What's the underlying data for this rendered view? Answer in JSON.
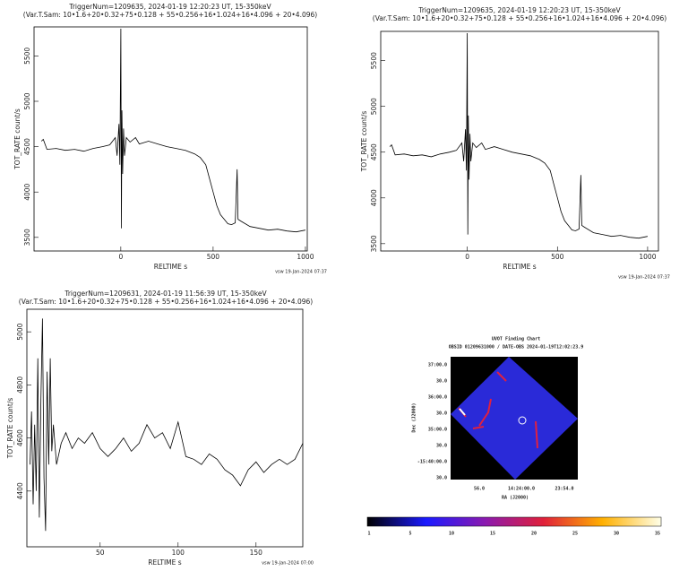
{
  "chart_data": [
    {
      "type": "line",
      "title": "TriggerNum=1209635, 2024-01-19 12:20:23 UT, 15-350keV",
      "subtitle": "(Var.T.Sam: 10•1.6+20•0.32+75•0.128 + 55•0.256+16•1.024+16•4.096 + 20•4.096)",
      "xlabel": "RELTIME s",
      "ylabel": "TOT_RATE count/s",
      "footer": "vsw 19-Jan-2024 07:37",
      "color": "#000000",
      "xlim": [
        -470,
        1010
      ],
      "xticks": [
        0,
        500,
        1000
      ],
      "ylim": [
        3350,
        5820
      ],
      "yticks": [
        3500,
        4000,
        4500,
        5000,
        5500
      ],
      "x": [
        -430,
        -420,
        -400,
        -350,
        -300,
        -250,
        -200,
        -150,
        -100,
        -60,
        -30,
        -20,
        -10,
        -5,
        0,
        3,
        6,
        10,
        15,
        20,
        30,
        50,
        80,
        100,
        150,
        200,
        250,
        300,
        350,
        400,
        430,
        460,
        480,
        500,
        520,
        540,
        560,
        580,
        600,
        620,
        630,
        635,
        650,
        700,
        750,
        800,
        850,
        900,
        950,
        1000
      ],
      "values": [
        4560,
        4580,
        4470,
        4480,
        4460,
        4470,
        4450,
        4480,
        4500,
        4520,
        4600,
        4400,
        4750,
        4300,
        5800,
        3600,
        4900,
        4200,
        4700,
        4400,
        4600,
        4550,
        4600,
        4530,
        4560,
        4530,
        4500,
        4480,
        4460,
        4420,
        4380,
        4300,
        4150,
        4000,
        3850,
        3750,
        3700,
        3650,
        3640,
        3660,
        4250,
        3700,
        3680,
        3620,
        3600,
        3580,
        3590,
        3570,
        3560,
        3580
      ]
    },
    {
      "type": "line",
      "title": "TriggerNum=1209635, 2024-01-19 12:20:23 UT, 15-350keV",
      "subtitle": "(Var.T.Sam: 10•1.6+20•0.32+75•0.128 + 55•0.256+16•1.024+16•4.096 + 20•4.096)",
      "xlabel": "RELTIME s",
      "ylabel": "TOT_RATE count/s",
      "footer": "vsw 19-Jan-2024 07:37",
      "color": "#000000",
      "xlim": [
        -480,
        1060
      ],
      "xticks": [
        0,
        500,
        1000
      ],
      "ylim": [
        3420,
        5820
      ],
      "yticks": [
        3500,
        4000,
        4500,
        5000,
        5500
      ],
      "x": [
        -430,
        -420,
        -400,
        -350,
        -300,
        -250,
        -200,
        -150,
        -100,
        -60,
        -30,
        -20,
        -10,
        -5,
        0,
        3,
        6,
        10,
        15,
        20,
        30,
        50,
        80,
        100,
        150,
        200,
        250,
        300,
        350,
        400,
        430,
        460,
        480,
        500,
        520,
        540,
        560,
        580,
        600,
        620,
        630,
        635,
        650,
        700,
        750,
        800,
        850,
        900,
        950,
        1000
      ],
      "values": [
        4560,
        4580,
        4470,
        4480,
        4460,
        4470,
        4450,
        4480,
        4500,
        4520,
        4600,
        4400,
        4750,
        4300,
        5800,
        3600,
        4900,
        4200,
        4700,
        4400,
        4600,
        4550,
        4600,
        4530,
        4560,
        4530,
        4500,
        4480,
        4460,
        4420,
        4380,
        4300,
        4150,
        4000,
        3850,
        3750,
        3700,
        3650,
        3640,
        3660,
        4250,
        3700,
        3680,
        3620,
        3600,
        3580,
        3590,
        3570,
        3560,
        3580
      ]
    },
    {
      "type": "line",
      "title": "TriggerNum=1209631, 2024-01-19 11:56:39 UT, 15-350keV",
      "subtitle": "(Var.T.Sam: 10•1.6+20•0.32+75•0.128 + 55•0.256+16•1.024+16•4.096 + 20•4.096)",
      "xlabel": "RELTIME s",
      "ylabel": "TOT_RATE count/s",
      "footer": "vsw 19-Jan-2024 07:00",
      "color": "#000000",
      "xlim": [
        3,
        180
      ],
      "xticks": [
        50,
        100,
        150
      ],
      "ylim": [
        4190,
        5085
      ],
      "yticks": [
        4400,
        4600,
        4800,
        5000
      ],
      "x": [
        5,
        6,
        7,
        8,
        9,
        10,
        11,
        12,
        13,
        14,
        15,
        16,
        17,
        18,
        19,
        20,
        22,
        25,
        28,
        32,
        36,
        40,
        45,
        50,
        55,
        60,
        65,
        70,
        75,
        80,
        85,
        90,
        95,
        100,
        105,
        110,
        115,
        120,
        125,
        130,
        135,
        140,
        145,
        150,
        155,
        160,
        165,
        170,
        175,
        180
      ],
      "values": [
        4500,
        4700,
        4350,
        4650,
        4400,
        4900,
        4300,
        4750,
        5050,
        4450,
        4250,
        4850,
        4500,
        4900,
        4550,
        4650,
        4500,
        4580,
        4620,
        4560,
        4600,
        4580,
        4620,
        4560,
        4530,
        4560,
        4600,
        4550,
        4580,
        4650,
        4600,
        4620,
        4560,
        4660,
        4530,
        4520,
        4500,
        4540,
        4520,
        4480,
        4460,
        4420,
        4480,
        4510,
        4470,
        4500,
        4520,
        4500,
        4520,
        4580
      ]
    }
  ],
  "finding_chart": {
    "title": "UVOT Finding Chart",
    "subtitle": "OBSID 01209631000 / DATE-OBS 2024-01-19T12:02:23.9",
    "ylabel": "Dec (J2000)",
    "xlabel": "RA (J2000)",
    "dec_ticks": [
      "37:00.0",
      "30.0",
      "36:00.0",
      "30.0",
      "35:00.0",
      "30.0",
      "-15:40:00.0",
      "30.0"
    ],
    "ra_ticks": [
      "56.0",
      "14:24:00.0",
      "23:54.0"
    ],
    "colorbar_ticks": [
      "1",
      "5",
      "10",
      "15",
      "20",
      "25",
      "30",
      "35"
    ]
  }
}
